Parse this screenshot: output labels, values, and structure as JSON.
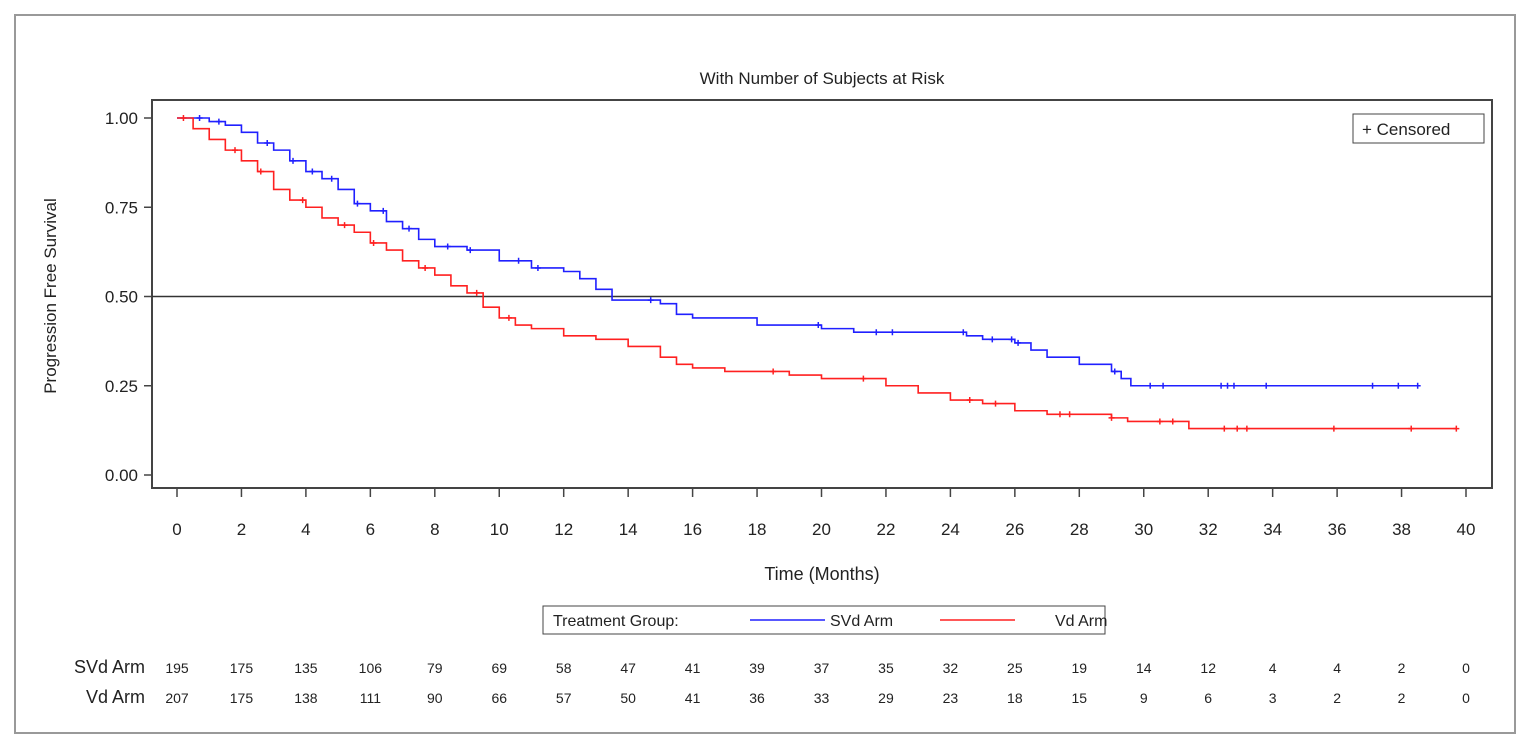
{
  "chart_data": {
    "type": "line",
    "subtitle": "With Number of Subjects at Risk",
    "xlabel": "Time (Months)",
    "ylabel": "Progression Free Survival",
    "xlim": [
      0,
      40
    ],
    "ylim": [
      0,
      1
    ],
    "xticks": [
      0,
      2,
      4,
      6,
      8,
      10,
      12,
      14,
      16,
      18,
      20,
      22,
      24,
      26,
      28,
      30,
      32,
      34,
      36,
      38,
      40
    ],
    "yticks": [
      "0.00",
      "0.25",
      "0.50",
      "0.75",
      "1.00"
    ],
    "reference_line": 0.5,
    "censored_legend": "+ Censored",
    "legend_title": "Treatment Group:",
    "series": [
      {
        "name": "SVd Arm",
        "color": "#2020ff",
        "steps": [
          [
            0,
            1
          ],
          [
            1,
            0.99
          ],
          [
            1.5,
            0.98
          ],
          [
            2,
            0.96
          ],
          [
            2.5,
            0.93
          ],
          [
            3,
            0.91
          ],
          [
            3.5,
            0.88
          ],
          [
            4,
            0.85
          ],
          [
            4.5,
            0.83
          ],
          [
            5,
            0.8
          ],
          [
            5.5,
            0.76
          ],
          [
            6,
            0.74
          ],
          [
            6.5,
            0.71
          ],
          [
            7,
            0.69
          ],
          [
            7.5,
            0.66
          ],
          [
            8,
            0.64
          ],
          [
            9,
            0.63
          ],
          [
            10,
            0.6
          ],
          [
            11,
            0.58
          ],
          [
            12,
            0.57
          ],
          [
            12.5,
            0.55
          ],
          [
            13,
            0.52
          ],
          [
            13.5,
            0.49
          ],
          [
            15,
            0.48
          ],
          [
            15.5,
            0.45
          ],
          [
            16,
            0.44
          ],
          [
            18,
            0.42
          ],
          [
            20,
            0.41
          ],
          [
            21,
            0.4
          ],
          [
            24.5,
            0.39
          ],
          [
            25,
            0.38
          ],
          [
            26,
            0.37
          ],
          [
            26.5,
            0.35
          ],
          [
            27,
            0.33
          ],
          [
            28,
            0.31
          ],
          [
            29,
            0.29
          ],
          [
            29.3,
            0.27
          ],
          [
            29.6,
            0.25
          ],
          [
            38.5,
            0.25
          ]
        ],
        "censored": [
          0.7,
          1.3,
          2.8,
          3.6,
          4.2,
          4.8,
          5.6,
          6.4,
          7.2,
          8.4,
          9.1,
          10.6,
          11.2,
          14.7,
          19.9,
          21.7,
          22.2,
          24.4,
          25.3,
          25.9,
          26.1,
          29.1,
          30.2,
          30.6,
          32.4,
          32.6,
          32.8,
          33.8,
          37.1,
          37.9,
          38.5
        ],
        "at_risk": [
          195,
          175,
          135,
          106,
          79,
          69,
          58,
          47,
          41,
          39,
          37,
          35,
          32,
          25,
          19,
          14,
          12,
          4,
          4,
          2,
          0
        ]
      },
      {
        "name": "Vd Arm",
        "color": "#ff2020",
        "steps": [
          [
            0,
            1
          ],
          [
            0.5,
            0.97
          ],
          [
            1,
            0.94
          ],
          [
            1.5,
            0.91
          ],
          [
            2,
            0.88
          ],
          [
            2.5,
            0.85
          ],
          [
            3,
            0.8
          ],
          [
            3.5,
            0.77
          ],
          [
            4,
            0.75
          ],
          [
            4.5,
            0.72
          ],
          [
            5,
            0.7
          ],
          [
            5.5,
            0.68
          ],
          [
            6,
            0.65
          ],
          [
            6.5,
            0.63
          ],
          [
            7,
            0.6
          ],
          [
            7.5,
            0.58
          ],
          [
            8,
            0.56
          ],
          [
            8.5,
            0.53
          ],
          [
            9,
            0.51
          ],
          [
            9.5,
            0.47
          ],
          [
            10,
            0.44
          ],
          [
            10.5,
            0.42
          ],
          [
            11,
            0.41
          ],
          [
            12,
            0.39
          ],
          [
            13,
            0.38
          ],
          [
            14,
            0.36
          ],
          [
            15,
            0.33
          ],
          [
            15.5,
            0.31
          ],
          [
            16,
            0.3
          ],
          [
            17,
            0.29
          ],
          [
            19,
            0.28
          ],
          [
            20,
            0.27
          ],
          [
            22,
            0.25
          ],
          [
            23,
            0.23
          ],
          [
            24,
            0.21
          ],
          [
            25,
            0.2
          ],
          [
            26,
            0.18
          ],
          [
            27,
            0.17
          ],
          [
            29,
            0.16
          ],
          [
            29.5,
            0.15
          ],
          [
            31.3,
            0.15
          ],
          [
            31.4,
            0.13
          ],
          [
            39.7,
            0.13
          ]
        ],
        "censored": [
          0.2,
          1.8,
          2.6,
          3.9,
          5.2,
          6.1,
          7.7,
          9.3,
          10.3,
          18.5,
          21.3,
          24.6,
          25.4,
          27.4,
          27.7,
          29.0,
          30.5,
          30.9,
          32.5,
          32.9,
          33.2,
          35.9,
          38.3,
          39.7
        ],
        "at_risk": [
          207,
          175,
          138,
          111,
          90,
          66,
          57,
          50,
          41,
          36,
          33,
          29,
          23,
          18,
          15,
          9,
          6,
          3,
          2,
          2,
          0
        ]
      }
    ]
  }
}
